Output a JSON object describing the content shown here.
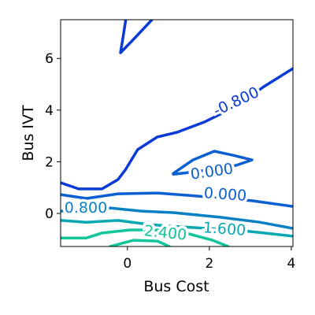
{
  "chart_data": {
    "type": "contour",
    "xlabel": "Bus Cost",
    "ylabel": "Bus IVT",
    "xlim": [
      -1.63,
      4.04
    ],
    "ylim": [
      -1.28,
      7.5
    ],
    "xticks": [
      0,
      2,
      4
    ],
    "yticks": [
      0,
      2,
      4,
      6
    ],
    "levels": [
      {
        "value": -0.8,
        "label": "-0.800",
        "color": "#0b3bd6",
        "x": [
          -0.04,
          -0.1,
          -0.17,
          0.15,
          0.6,
          null,
          -1.63,
          -1.19,
          -0.62,
          -0.23,
          -0.04,
          0.25,
          0.73,
          1.21,
          1.88,
          2.65,
          3.33,
          4.04
        ],
        "y": [
          7.5,
          6.89,
          6.22,
          6.74,
          7.5,
          null,
          1.19,
          0.95,
          0.95,
          1.31,
          1.71,
          2.47,
          2.96,
          3.14,
          3.54,
          4.15,
          4.91,
          5.61
        ]
      },
      {
        "value": 0.0,
        "label": "0.000",
        "color": "#0a5fd2",
        "x": [
          1.12,
          1.6,
          2.12,
          2.56,
          3.04,
          2.65,
          2.1,
          1.6,
          1.12,
          null,
          -1.63,
          -1.0,
          -0.23,
          0.73,
          1.5,
          3.04,
          4.04
        ],
        "y": [
          1.55,
          2.07,
          2.41,
          2.26,
          2.07,
          1.86,
          1.72,
          1.6,
          1.52,
          null,
          0.73,
          0.58,
          0.76,
          0.79,
          0.7,
          0.49,
          0.27
        ]
      },
      {
        "value": 0.8,
        "label": "0.800",
        "color": "#0a80c4",
        "x": [
          -1.63,
          -0.42,
          0.35,
          1.12,
          2.27,
          3.23,
          4.04
        ],
        "y": [
          0.09,
          0.21,
          0.09,
          0.03,
          -0.15,
          -0.34,
          -0.58
        ]
      },
      {
        "value": 1.6,
        "label": "1.600",
        "color": "#06a8b2",
        "x": [
          -1.63,
          -1.0,
          -0.23,
          0.54,
          1.31,
          2.65,
          4.04
        ],
        "y": [
          -0.27,
          -0.34,
          -0.27,
          -0.43,
          -0.52,
          -0.64,
          -0.88
        ]
      },
      {
        "value": 2.4,
        "label": "2.400",
        "color": "#12c59a",
        "x": [
          -1.63,
          -1.0,
          -0.62,
          0.06,
          0.73,
          1.5,
          2.08,
          2.46,
          null,
          -0.42,
          0.15,
          0.73,
          1.02
        ],
        "y": [
          -0.95,
          -0.95,
          -0.76,
          -0.64,
          -0.64,
          -0.79,
          -1.04,
          -1.28,
          null,
          -1.28,
          -1.04,
          -1.07,
          -1.28
        ]
      }
    ]
  }
}
